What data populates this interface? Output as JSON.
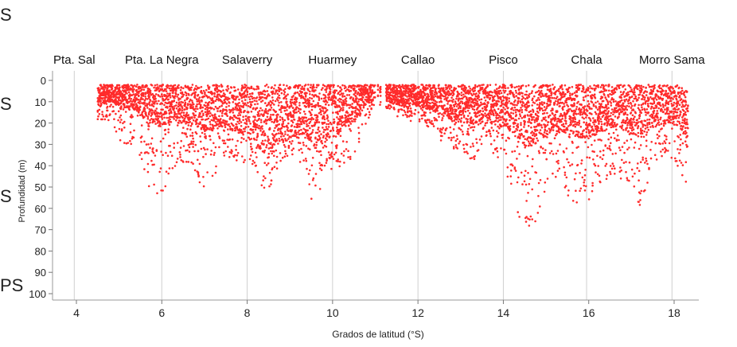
{
  "edge_fragments": [
    "S",
    "S",
    "S",
    "PS"
  ],
  "chart_data": {
    "type": "scatter",
    "title": "",
    "xlabel": "Grados de latitud (°S)",
    "ylabel": "Profundidad (m)",
    "xlim": [
      3.5,
      18.4
    ],
    "ylim": [
      0,
      100
    ],
    "y_inverted": true,
    "grid": "vertical lines at each top location",
    "x_ticks": [
      "4",
      "6",
      "8",
      "10",
      "12",
      "14",
      "16",
      "18"
    ],
    "y_ticks": [
      "0",
      "10",
      "20",
      "30",
      "40",
      "50",
      "60",
      "70",
      "80",
      "90",
      "100"
    ],
    "series_color": "#ff2b2b",
    "locations": [
      {
        "name": "Pta. Sal",
        "lat": 3.95
      },
      {
        "name": "Pta. La Negra",
        "lat": 6.0
      },
      {
        "name": "Salaverry",
        "lat": 8.0
      },
      {
        "name": "Huarmey",
        "lat": 10.0
      },
      {
        "name": "Callao",
        "lat": 12.0
      },
      {
        "name": "Pisco",
        "lat": 14.0
      },
      {
        "name": "Chala",
        "lat": 15.95
      },
      {
        "name": "Morro Sama",
        "lat": 17.95
      }
    ],
    "depth_profile": {
      "lat": [
        4.5,
        4.8,
        5.1,
        5.4,
        5.7,
        5.9,
        6.2,
        6.6,
        7.0,
        7.5,
        8.0,
        8.3,
        8.5,
        8.8,
        9.1,
        9.4,
        9.6,
        9.8,
        10.0,
        10.2,
        10.5,
        10.8,
        11.0,
        11.3,
        11.6,
        12.0,
        12.3,
        12.6,
        13.0,
        13.3,
        13.6,
        14.0,
        14.3,
        14.5,
        14.8,
        15.0,
        15.3,
        15.6,
        15.9,
        16.2,
        16.5,
        16.9,
        17.2,
        17.5,
        17.9,
        18.1,
        18.3
      ],
      "max_depth": [
        22,
        18,
        32,
        30,
        52,
        58,
        45,
        38,
        52,
        36,
        40,
        50,
        52,
        38,
        36,
        42,
        68,
        40,
        42,
        40,
        36,
        20,
        10,
        14,
        18,
        20,
        22,
        30,
        34,
        38,
        30,
        40,
        60,
        72,
        66,
        50,
        44,
        58,
        58,
        52,
        44,
        48,
        60,
        40,
        36,
        42,
        54
      ],
      "typical_depth": [
        10,
        8,
        12,
        12,
        20,
        20,
        18,
        18,
        22,
        20,
        25,
        30,
        35,
        28,
        25,
        25,
        30,
        28,
        25,
        22,
        18,
        10,
        6,
        8,
        10,
        10,
        12,
        15,
        18,
        20,
        18,
        20,
        25,
        30,
        28,
        25,
        22,
        25,
        25,
        24,
        20,
        22,
        25,
        20,
        18,
        20,
        25
      ]
    }
  }
}
